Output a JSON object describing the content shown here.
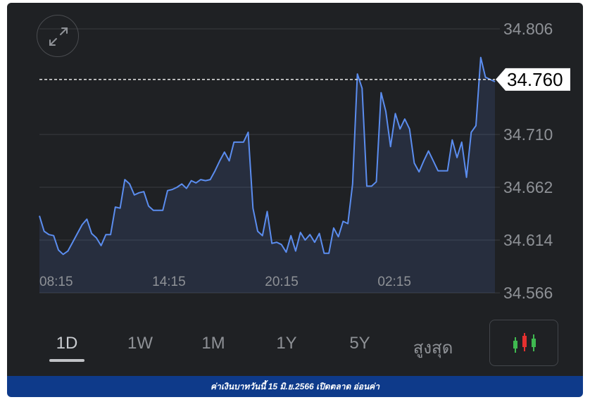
{
  "chart": {
    "current_price": "34.760",
    "y_ticks": [
      "34.806",
      "34.710",
      "34.662",
      "34.614",
      "34.566"
    ],
    "x_ticks": [
      "08:15",
      "14:15",
      "20:15",
      "02:15"
    ]
  },
  "tabs": [
    {
      "label": "1D",
      "active": true
    },
    {
      "label": "1W",
      "active": false
    },
    {
      "label": "1M",
      "active": false
    },
    {
      "label": "1Y",
      "active": false
    },
    {
      "label": "5Y",
      "active": false
    },
    {
      "label": "สูงสุด",
      "active": false
    }
  ],
  "icons": {
    "expand": "expand-icon",
    "candlestick": "candlestick-icon"
  },
  "caption": "ค่าเงินบาทวันนี้ 15 มิ.ย.2566 เปิดตลาด อ่อนค่า",
  "colors": {
    "background": "#1f2124",
    "line": "#5b8def",
    "candle_green": "#3fb950",
    "candle_red": "#e5302f",
    "caption_bar": "#0e3a8a"
  },
  "chart_data": {
    "type": "line",
    "ylim": [
      34.566,
      34.806
    ],
    "x_tick_labels": [
      "08:15",
      "14:15",
      "20:15",
      "02:15"
    ],
    "current": 34.76,
    "series": [
      {
        "values": [
          34.636,
          34.622,
          34.619,
          34.618,
          34.605,
          34.601,
          34.604,
          34.612,
          34.62,
          34.628,
          34.633,
          34.62,
          34.616,
          34.609,
          34.619,
          34.619,
          34.644,
          34.643,
          34.669,
          34.665,
          34.655,
          34.657,
          34.658,
          34.645,
          34.641,
          34.641,
          34.641,
          34.659,
          34.66,
          34.662,
          34.665,
          34.661,
          34.668,
          34.666,
          34.669,
          34.668,
          34.669,
          34.677,
          34.686,
          34.694,
          34.686,
          34.703,
          34.703,
          34.703,
          34.712,
          34.643,
          34.622,
          34.618,
          34.64,
          34.611,
          34.612,
          34.61,
          34.603,
          34.618,
          34.604,
          34.621,
          34.614,
          34.619,
          34.612,
          34.62,
          34.602,
          34.602,
          34.625,
          34.617,
          34.631,
          34.629,
          34.665,
          34.765,
          34.752,
          34.663,
          34.663,
          34.667,
          34.748,
          34.731,
          34.699,
          34.729,
          34.715,
          34.724,
          34.715,
          34.684,
          34.676,
          34.686,
          34.695,
          34.686,
          34.677,
          34.677,
          34.677,
          34.705,
          34.689,
          34.703,
          34.671,
          34.712,
          34.718,
          34.78,
          34.762,
          34.76,
          34.758
        ]
      }
    ]
  }
}
